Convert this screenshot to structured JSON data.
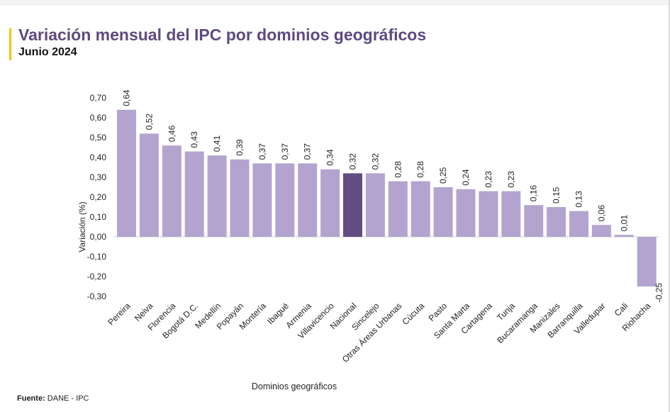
{
  "header": {
    "title": "Variación mensual del IPC por dominios geográficos",
    "subtitle": "Junio 2024"
  },
  "footer": {
    "label": "Fuente:",
    "text": "DANE - IPC"
  },
  "colors": {
    "accent": "#f3c600",
    "title": "#5d4a80",
    "bar": "#b3a4cf",
    "bar_highlight": "#634b84"
  },
  "chart_data": {
    "type": "bar",
    "title": "",
    "xlabel": "Dominios geográficos",
    "ylabel": "Variación (%)",
    "ylim": [
      -0.3,
      0.7
    ],
    "yticks": [
      "0,70",
      "0,60",
      "0,50",
      "0,40",
      "0,30",
      "0,20",
      "0,10",
      "0,00",
      "-0,10",
      "-0,20",
      "-0,30"
    ],
    "grid": false,
    "legend": "none",
    "highlight_category": "Nacional",
    "categories": [
      "Pereira",
      "Neiva",
      "Florencia",
      "Bogotá D.C.",
      "Medellín",
      "Popayán",
      "Montería",
      "Ibagué",
      "Armenia",
      "Villavicencio",
      "Nacional",
      "Sincelejo",
      "Otras Áreas Urbanas",
      "Cúcuta",
      "Pasto",
      "Santa Marta",
      "Cartagena",
      "Tunja",
      "Bucaramanga",
      "Manizales",
      "Barranquilla",
      "Valledupar",
      "Cali",
      "Riohacha"
    ],
    "values": [
      0.64,
      0.52,
      0.46,
      0.43,
      0.41,
      0.39,
      0.37,
      0.37,
      0.37,
      0.34,
      0.32,
      0.32,
      0.28,
      0.28,
      0.25,
      0.24,
      0.23,
      0.23,
      0.16,
      0.15,
      0.13,
      0.06,
      0.01,
      -0.25
    ],
    "value_labels": [
      "0,64",
      "0,52",
      "0,46",
      "0,43",
      "0,41",
      "0,39",
      "0,37",
      "0,37",
      "0,37",
      "0,34",
      "0,32",
      "0,32",
      "0,28",
      "0,28",
      "0,25",
      "0,24",
      "0,23",
      "0,23",
      "0,16",
      "0,15",
      "0,13",
      "0,06",
      "0,01",
      "-0,25"
    ]
  }
}
